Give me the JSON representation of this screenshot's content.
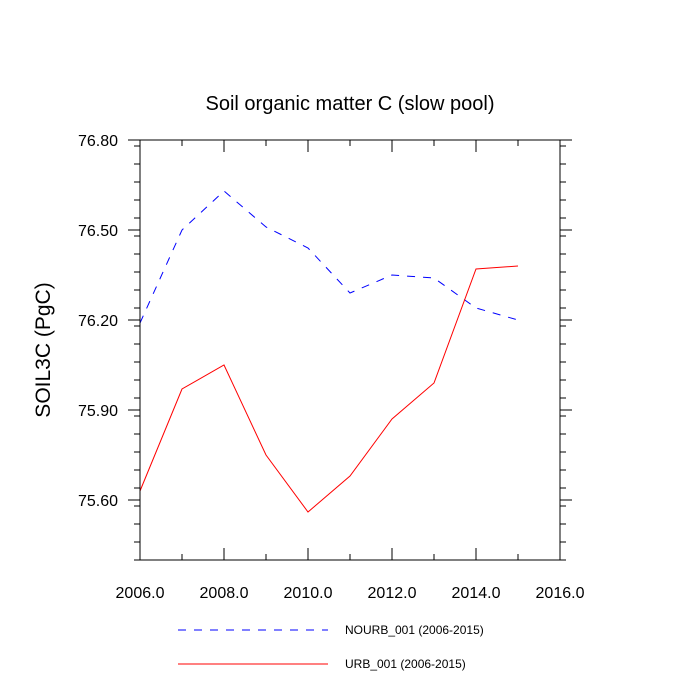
{
  "chart_data": {
    "type": "line",
    "title": "Soil organic matter C (slow pool)",
    "xlabel": "",
    "ylabel": "SOIL3C  (PgC)",
    "xlim": [
      2006,
      2016
    ],
    "ylim": [
      75.4,
      76.8
    ],
    "x_ticks": [
      2006,
      2008,
      2010,
      2012,
      2014,
      2016
    ],
    "x_tick_labels": [
      "2006.0",
      "2008.0",
      "2010.0",
      "2012.0",
      "2014.0",
      "2016.0"
    ],
    "y_ticks": [
      75.6,
      75.9,
      76.2,
      76.5,
      76.8
    ],
    "y_tick_labels": [
      "75.60",
      "75.90",
      "76.20",
      "76.50",
      "76.80"
    ],
    "x": [
      2006,
      2007,
      2008,
      2009,
      2010,
      2011,
      2012,
      2013,
      2014,
      2015
    ],
    "series": [
      {
        "name": "NOURB_001 (2006-2015)",
        "color": "#0000ff",
        "style": "dashed",
        "values": [
          76.19,
          76.5,
          76.63,
          76.51,
          76.44,
          76.29,
          76.35,
          76.34,
          76.24,
          76.2
        ]
      },
      {
        "name": "URB_001 (2006-2015)",
        "color": "#ff0000",
        "style": "solid",
        "values": [
          75.63,
          75.97,
          76.05,
          75.75,
          75.56,
          75.68,
          75.87,
          75.99,
          76.37,
          76.38
        ]
      }
    ],
    "grid": false,
    "legend_position": "bottom"
  }
}
